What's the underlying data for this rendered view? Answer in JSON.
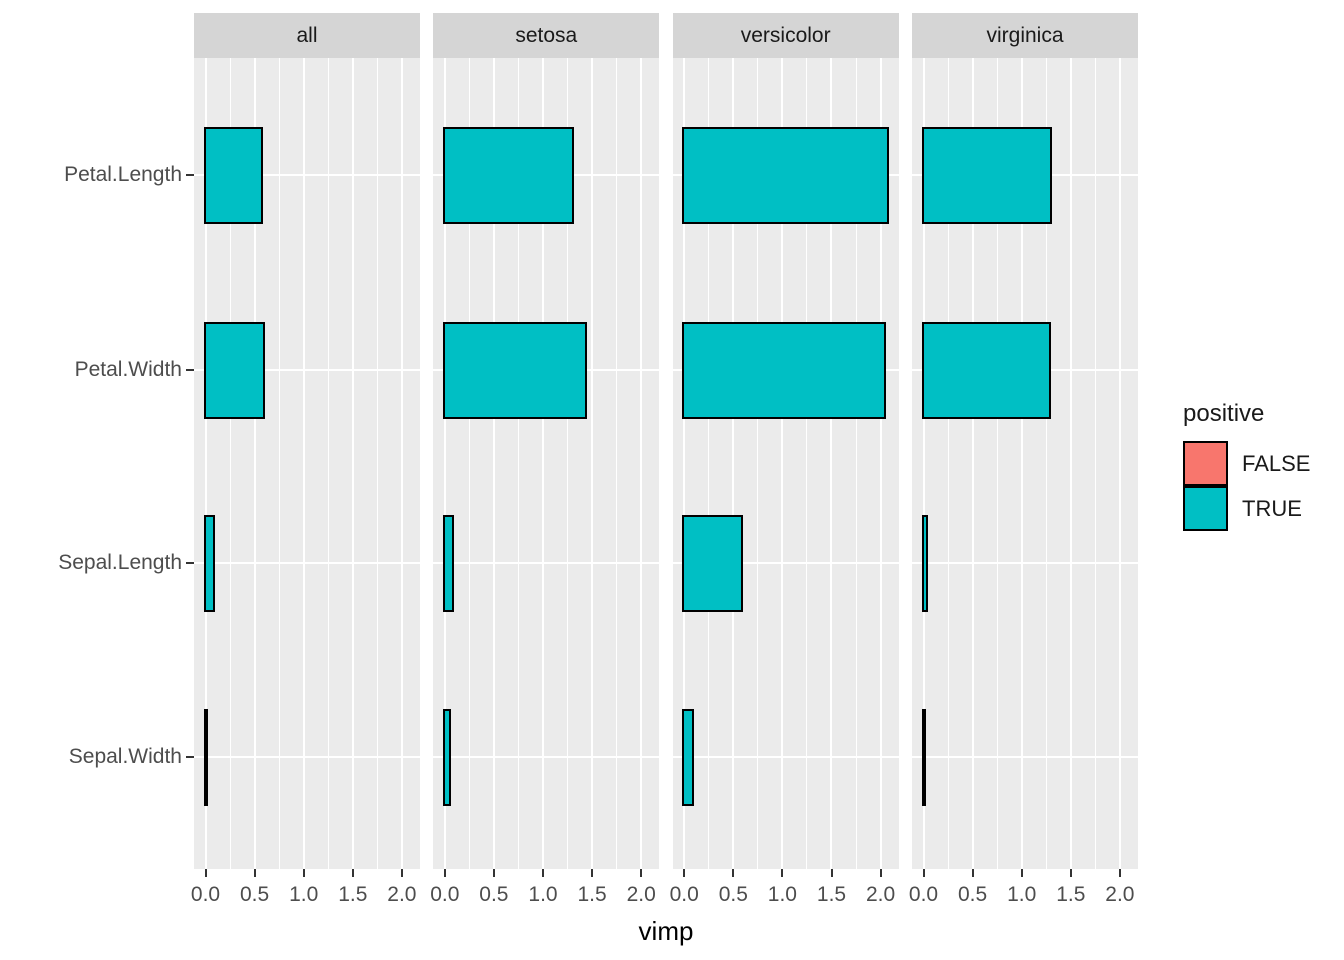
{
  "chart_data": {
    "type": "bar",
    "orientation": "horizontal",
    "xlabel": "vimp",
    "facets": [
      "all",
      "setosa",
      "versicolor",
      "virginica"
    ],
    "categories": [
      "Petal.Length",
      "Petal.Width",
      "Sepal.Length",
      "Sepal.Width"
    ],
    "series": [
      {
        "facet": "all",
        "values": [
          0.57,
          0.59,
          0.08,
          0.005
        ],
        "positive": [
          true,
          true,
          true,
          true
        ]
      },
      {
        "facet": "setosa",
        "values": [
          1.3,
          1.43,
          0.07,
          0.04
        ],
        "positive": [
          true,
          true,
          true,
          true
        ]
      },
      {
        "facet": "versicolor",
        "values": [
          2.07,
          2.03,
          0.58,
          0.08
        ],
        "positive": [
          true,
          true,
          true,
          true
        ]
      },
      {
        "facet": "virginica",
        "values": [
          1.29,
          1.28,
          0.03,
          0.005
        ],
        "positive": [
          true,
          true,
          true,
          true
        ]
      }
    ],
    "x_ticks": [
      {
        "value": 0.0,
        "label": "0.0"
      },
      {
        "value": 0.5,
        "label": "0.5"
      },
      {
        "value": 1.0,
        "label": "1.0"
      },
      {
        "value": 1.5,
        "label": "1.5"
      },
      {
        "value": 2.0,
        "label": "2.0"
      }
    ],
    "x_minor_ticks": [
      0.25,
      0.75,
      1.25,
      1.75
    ],
    "xlim": [
      -0.117,
      2.184
    ],
    "grid": true,
    "legend": {
      "title": "positive",
      "position": "right",
      "entries": [
        {
          "label": "FALSE",
          "color": "#F8766D"
        },
        {
          "label": "TRUE",
          "color": "#00BFC4"
        }
      ]
    },
    "colors": {
      "bar_true": "#00BFC4",
      "bar_false": "#F8766D",
      "bar_border": "#000000",
      "panel_background": "#EBEBEB",
      "strip_background": "#D5D5D5",
      "gridline": "#FFFFFF",
      "axis_text": "#4D4D4D",
      "tick_mark": "#333333",
      "text": "#1A1A1A"
    }
  }
}
